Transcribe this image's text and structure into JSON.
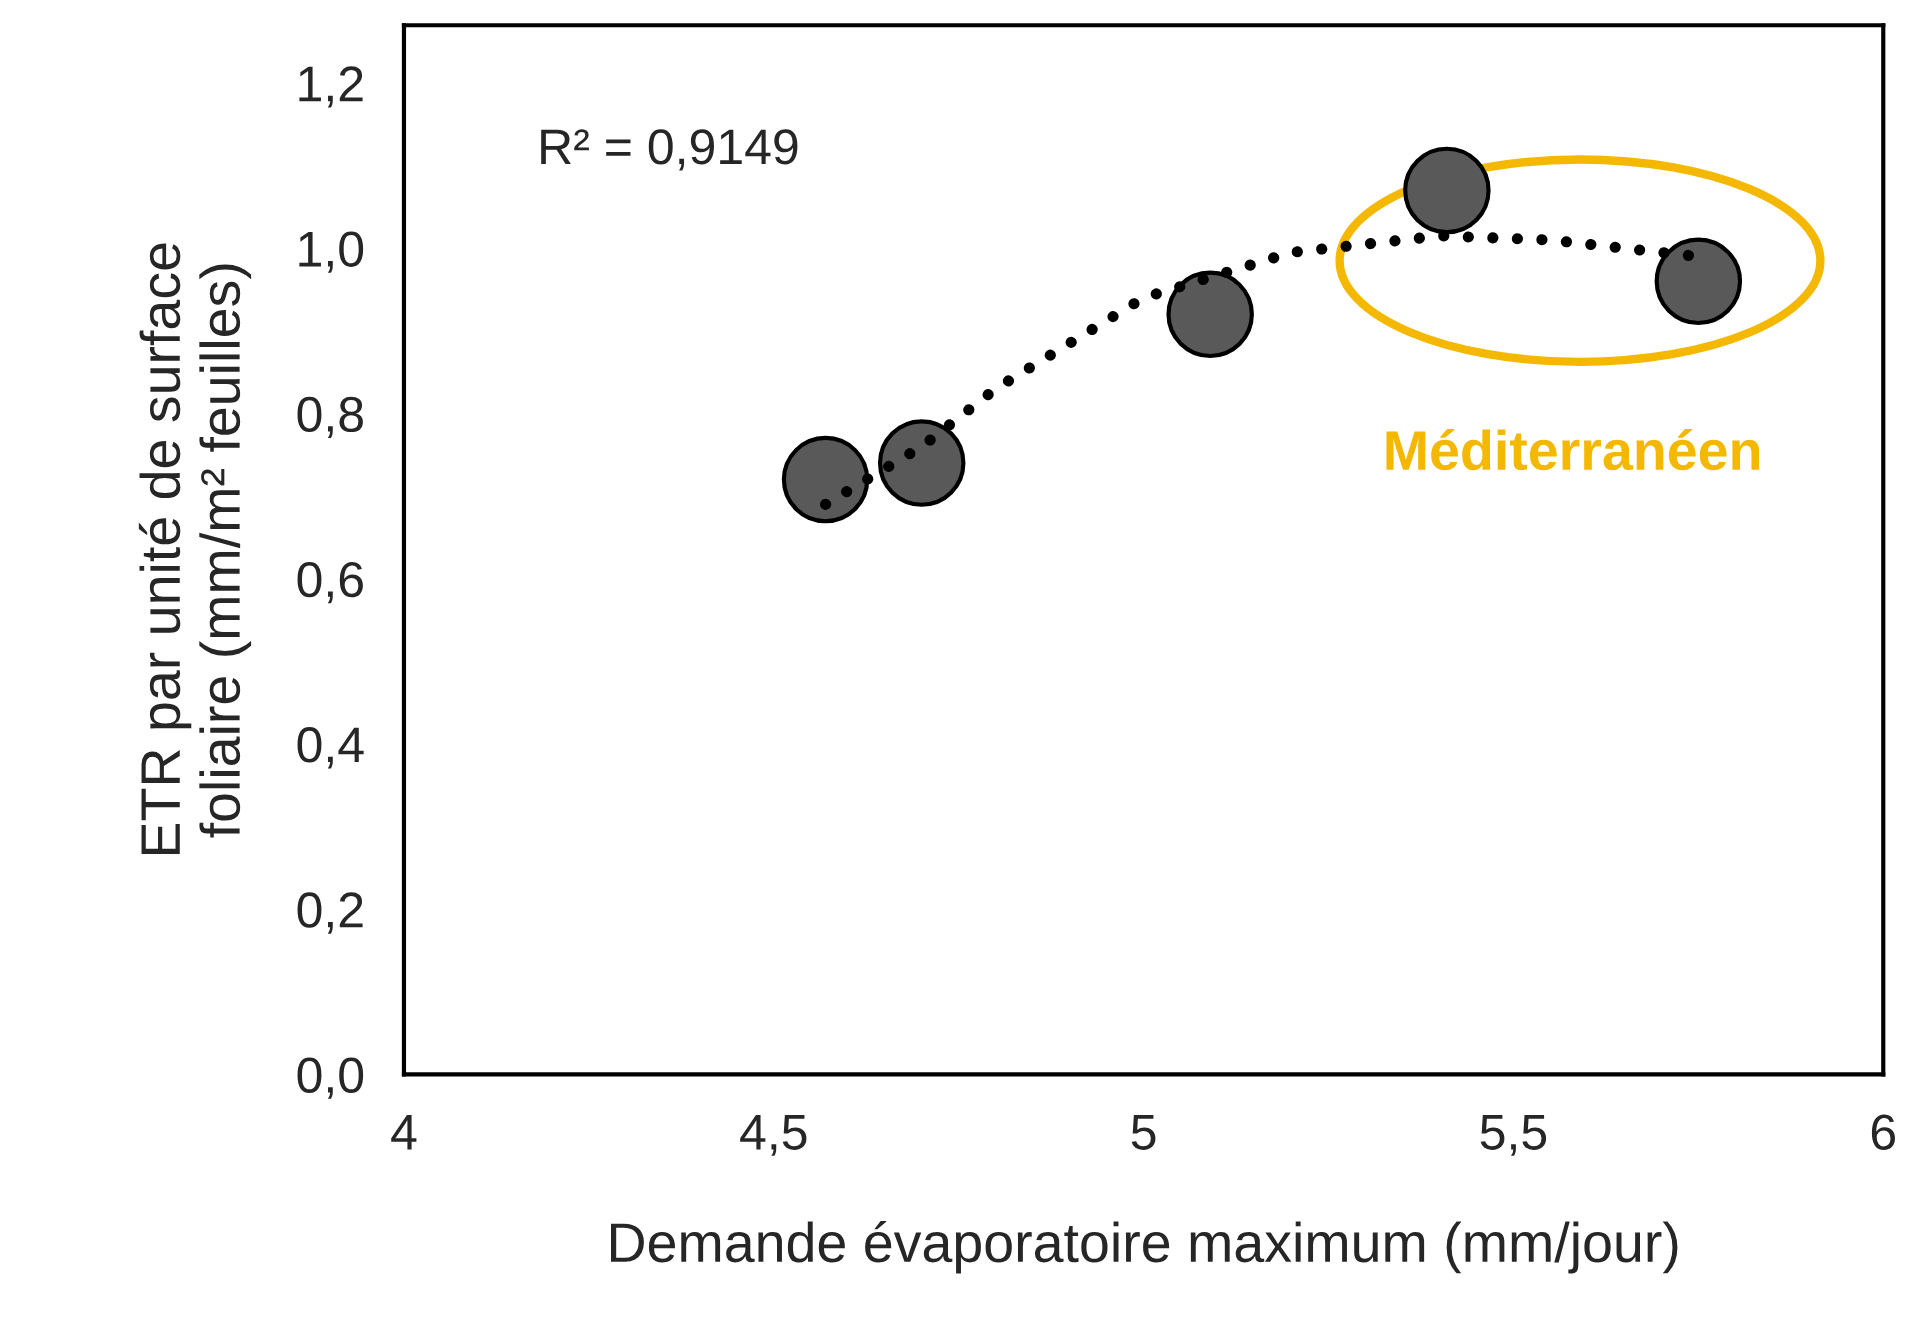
{
  "chart_data": {
    "type": "scatter",
    "xlabel": "Demande évaporatoire maximum (mm/jour)",
    "ylabel": "ETR par unité de surface\nfoliaire (mm/m² feuilles)",
    "x": [
      4.57,
      4.7,
      5.09,
      5.41,
      5.75
    ],
    "series": [
      {
        "color": "#595959",
        "marker": "circle",
        "values": [
          0.72,
          0.74,
          0.92,
          1.07,
          0.96
        ]
      },
      {
        "type": "line",
        "color": "#000000",
        "line_style": "dotted",
        "marker": "none",
        "x": [
          4.57,
          4.7,
          4.8,
          5.0,
          5.2,
          5.4,
          5.55,
          5.75
        ],
        "values": [
          0.69,
          0.76,
          0.83,
          0.94,
          0.995,
          1.015,
          1.01,
          0.99
        ]
      }
    ],
    "annotations": [
      "R² = 0,9149",
      "Méditerranéen"
    ],
    "xlim": [
      4,
      6
    ],
    "ylim": [
      0,
      1.27
    ],
    "xticks": [
      4,
      {
        "value": 4.5,
        "label": "4,5"
      },
      5,
      {
        "value": 5.5,
        "label": "5,5"
      },
      6
    ],
    "yticks": [
      {
        "value": 0,
        "label": "0,0"
      },
      {
        "value": 0.2,
        "label": "0,2"
      },
      {
        "value": 0.4,
        "label": "0,4"
      },
      {
        "value": 0.6,
        "label": "0,6"
      },
      {
        "value": 0.8,
        "label": "0,8"
      },
      {
        "value": 1.0,
        "label": "1,0"
      },
      {
        "value": 1.2,
        "label": "1,2"
      }
    ],
    "grid": false,
    "legend": false
  }
}
